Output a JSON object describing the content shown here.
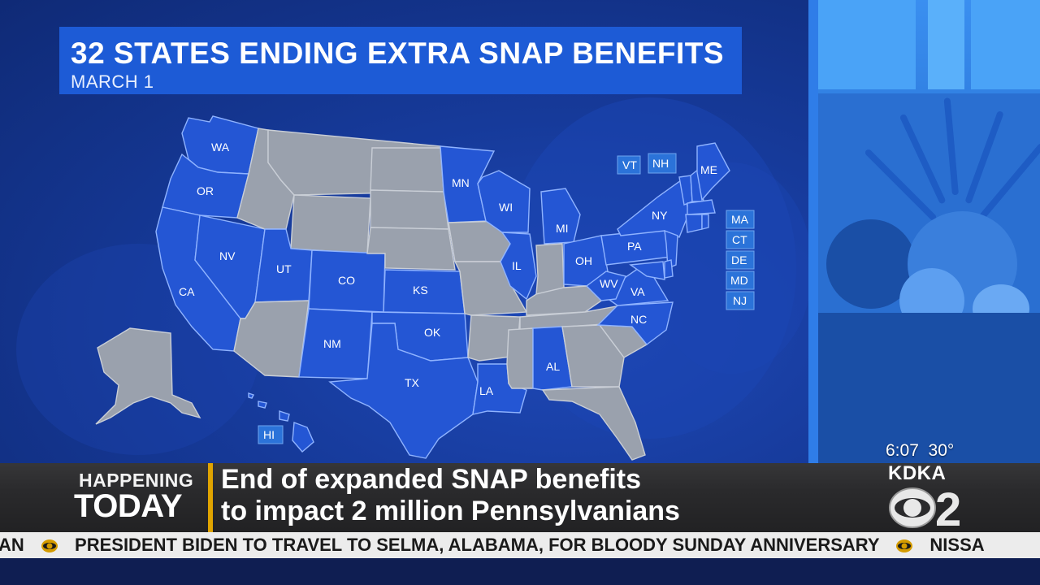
{
  "title": {
    "main": "32 STATES ENDING EXTRA SNAP BENEFITS",
    "sub": "MARCH 1"
  },
  "map": {
    "colors": {
      "ending": "#2456d4",
      "other": "#9aa1ad"
    },
    "states": [
      {
        "abbr": "WA",
        "ending": true
      },
      {
        "abbr": "OR",
        "ending": true
      },
      {
        "abbr": "CA",
        "ending": true
      },
      {
        "abbr": "NV",
        "ending": true
      },
      {
        "abbr": "UT",
        "ending": true
      },
      {
        "abbr": "CO",
        "ending": true
      },
      {
        "abbr": "NM",
        "ending": true
      },
      {
        "abbr": "KS",
        "ending": true
      },
      {
        "abbr": "OK",
        "ending": true
      },
      {
        "abbr": "TX",
        "ending": true
      },
      {
        "abbr": "LA",
        "ending": true
      },
      {
        "abbr": "AL",
        "ending": true
      },
      {
        "abbr": "MN",
        "ending": true
      },
      {
        "abbr": "WI",
        "ending": true
      },
      {
        "abbr": "MI",
        "ending": true
      },
      {
        "abbr": "IL",
        "ending": true
      },
      {
        "abbr": "OH",
        "ending": true
      },
      {
        "abbr": "PA",
        "ending": true
      },
      {
        "abbr": "NY",
        "ending": true
      },
      {
        "abbr": "WV",
        "ending": true
      },
      {
        "abbr": "VA",
        "ending": true
      },
      {
        "abbr": "NC",
        "ending": true
      },
      {
        "abbr": "ME",
        "ending": true
      },
      {
        "abbr": "HI",
        "ending": true
      }
    ],
    "callouts": [
      "VT",
      "NH",
      "MA",
      "CT",
      "DE",
      "MD",
      "NJ",
      "HI"
    ]
  },
  "lower_third": {
    "kicker_top": "HAPPENING",
    "kicker_bottom": "TODAY",
    "headline_line1": "End of expanded SNAP benefits",
    "headline_line2": "to impact 2 million Pennsylvanians",
    "time": "6:07",
    "temperature": "30°",
    "station": "KDKA",
    "channel": "2"
  },
  "ticker": {
    "items": [
      "AN",
      "PRESIDENT BIDEN TO TRAVEL TO SELMA, ALABAMA, FOR BLOODY SUNDAY ANNIVERSARY",
      "NISSA"
    ]
  }
}
